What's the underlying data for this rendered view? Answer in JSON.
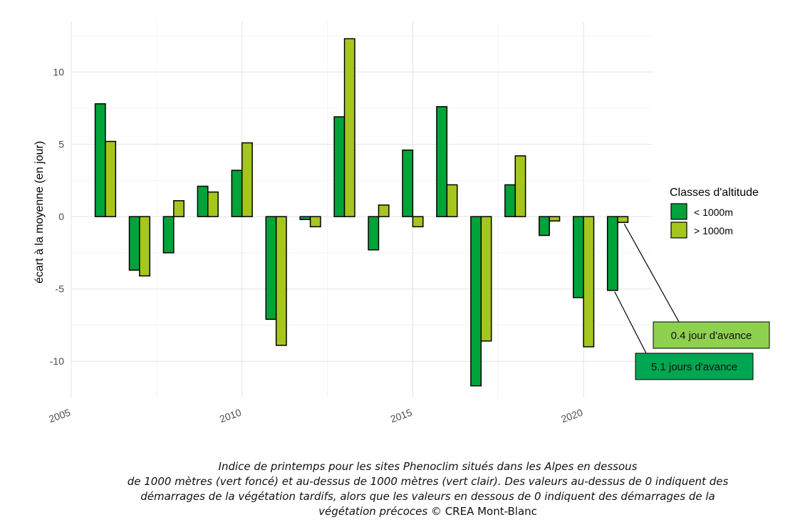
{
  "chart_data": {
    "type": "bar",
    "ylabel": "écart à la moyenne (en jour)",
    "xlim": [
      2005,
      2022
    ],
    "ylim": [
      -12.5,
      13.5
    ],
    "x_ticks": [
      2005,
      2010,
      2015,
      2020
    ],
    "y_ticks": [
      -10,
      -5,
      0,
      5,
      10
    ],
    "grid": true,
    "legend_position": "right",
    "legend_title": "Classes d'altitude",
    "x": [
      2006,
      2007,
      2008,
      2009,
      2010,
      2011,
      2012,
      2013,
      2014,
      2015,
      2016,
      2017,
      2018,
      2019,
      2020,
      2021
    ],
    "series": [
      {
        "name": "< 1000m",
        "color": "#00a33a",
        "values": [
          7.8,
          -3.7,
          -2.5,
          2.1,
          3.2,
          -7.1,
          -0.2,
          6.9,
          -2.3,
          4.6,
          7.6,
          -11.7,
          2.2,
          -1.3,
          -5.6,
          -5.1
        ]
      },
      {
        "name": "> 1000m",
        "color": "#a5c61e",
        "values": [
          5.2,
          -4.1,
          1.1,
          1.7,
          5.1,
          -8.9,
          -0.7,
          12.3,
          0.8,
          -0.7,
          2.2,
          -8.6,
          4.2,
          -0.3,
          -9.0,
          -0.4
        ]
      }
    ],
    "annotations": [
      {
        "text": "0.4 jour d'avance",
        "year": 2021,
        "series": 1,
        "color": "#8ed04f"
      },
      {
        "text": "5.1 jours d'avance",
        "year": 2021,
        "series": 0,
        "color": "#00a651"
      }
    ]
  },
  "caption": {
    "line1": "Indice de printemps pour les sites Phenoclim situés dans les Alpes en dessous",
    "line2": "de 1000 mètres (vert foncé) et au-dessus de 1000 mètres (vert clair). Des valeurs au-dessus de 0 indiquent des",
    "line3": "démarrages de la végétation tardifs, alors que les valeurs en dessous de 0 indiquent des démarrages de la",
    "line4_italic": "végétation précoces",
    "line4_rest": " © CREA Mont-Blanc"
  }
}
